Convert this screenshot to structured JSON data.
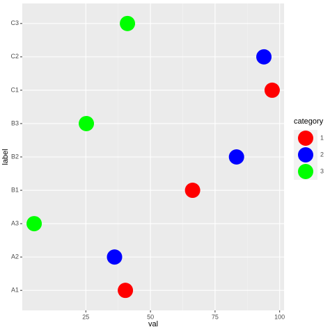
{
  "chart_data": {
    "type": "scatter",
    "x_label": "val",
    "y_label": "label",
    "categories": [
      "A1",
      "A2",
      "A3",
      "B1",
      "B2",
      "B3",
      "C1",
      "C2",
      "C3"
    ],
    "series": [
      {
        "name": "1",
        "color": "#ff0000",
        "y": [
          "A1",
          "B1",
          "C1"
        ],
        "values": [
          40.3,
          66.3,
          97.1
        ]
      },
      {
        "name": "2",
        "color": "#0000ff",
        "y": [
          "A2",
          "B2",
          "C2"
        ],
        "values": [
          36.1,
          83.3,
          93.9
        ]
      },
      {
        "name": "3",
        "color": "#00ff00",
        "y": [
          "A3",
          "B3",
          "C3"
        ],
        "values": [
          5.0,
          25.2,
          41.1
        ]
      }
    ],
    "xlim": [
      0.4,
      101.7
    ],
    "xticks": [
      25,
      50,
      75,
      100
    ],
    "legend_title": "category",
    "legend_position": "right",
    "grid": true
  }
}
